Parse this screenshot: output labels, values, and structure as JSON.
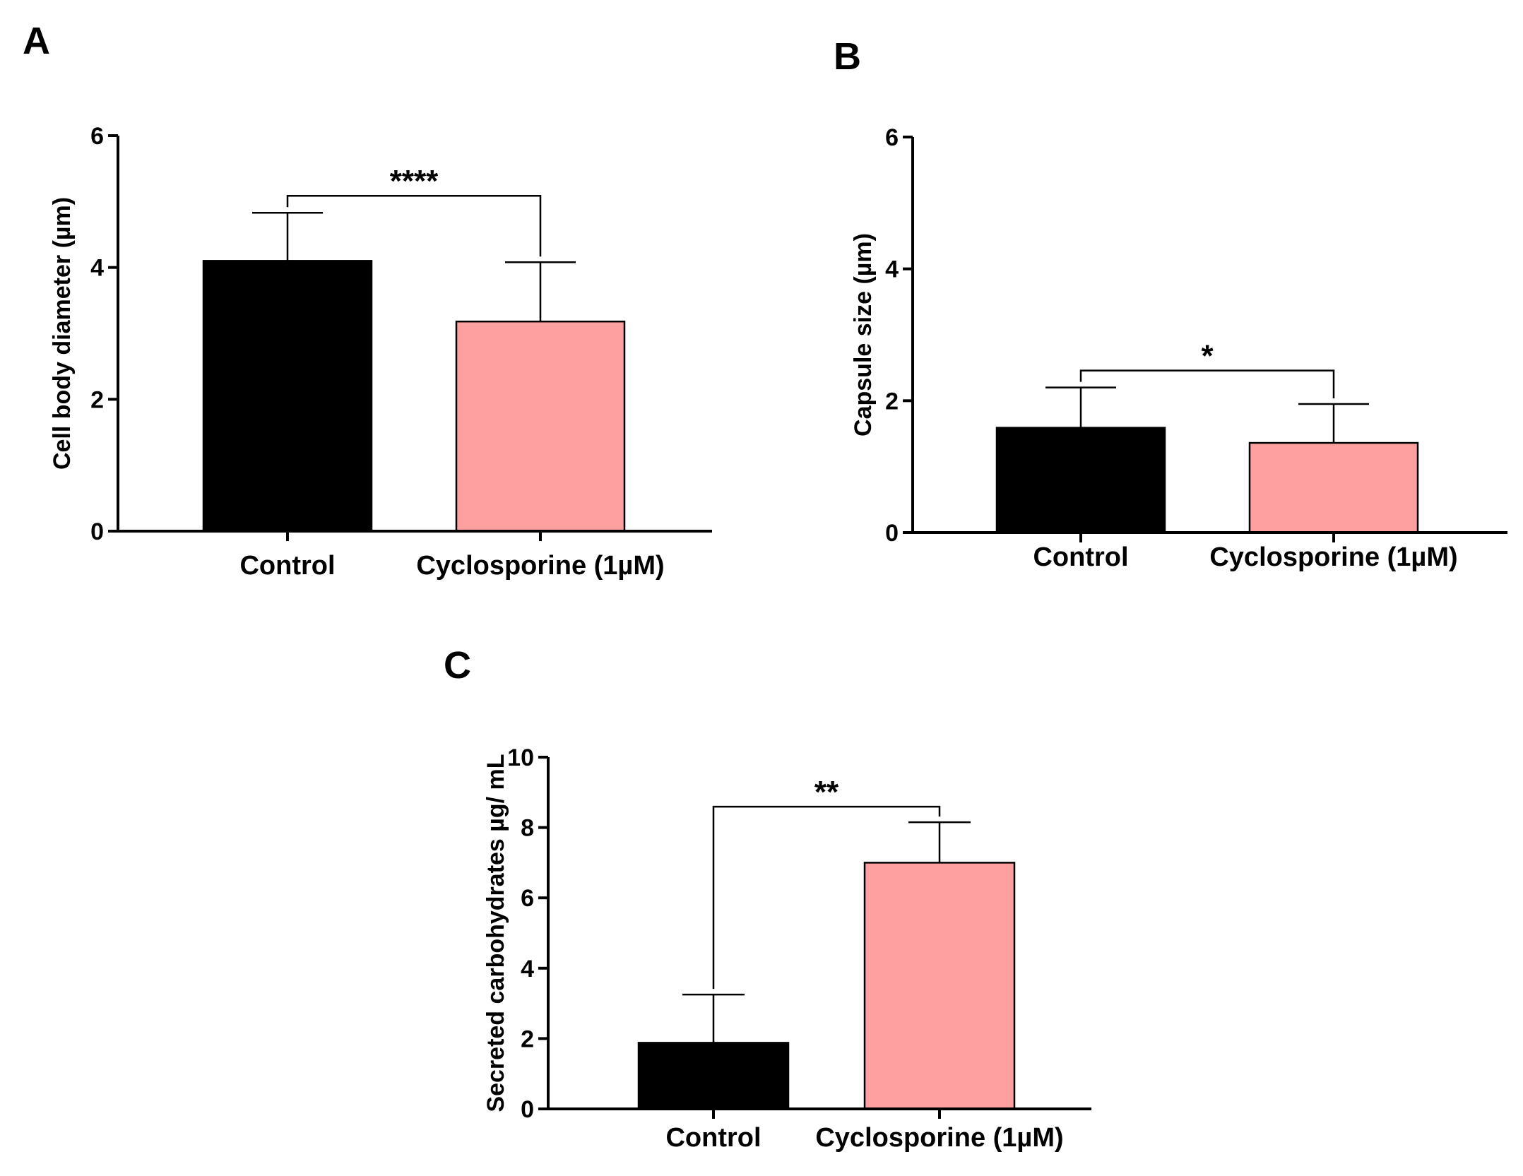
{
  "colors": {
    "control": "#000000",
    "cyclosporine": "#ffa0a0",
    "axis": "#000000"
  },
  "chart_data": [
    {
      "panel": "A",
      "type": "bar",
      "title": "",
      "xlabel": "",
      "ylabel": "Cell body diameter (µm)",
      "categories": [
        "Control",
        "Cyclosporine (1µM)"
      ],
      "values": [
        4.1,
        3.18
      ],
      "errors": [
        0.73,
        0.9
      ],
      "ylim": [
        0,
        6
      ],
      "yticks": [
        0,
        2,
        4,
        6
      ],
      "significance": {
        "label": "****",
        "between": [
          0,
          1
        ]
      },
      "grid": false
    },
    {
      "panel": "B",
      "type": "bar",
      "title": "",
      "xlabel": "",
      "ylabel": "Capsule size (µm)",
      "categories": [
        "Control",
        "Cyclosporine (1µM)"
      ],
      "values": [
        1.59,
        1.36
      ],
      "errors": [
        0.61,
        0.59
      ],
      "ylim": [
        0,
        6
      ],
      "yticks": [
        0,
        2,
        4,
        6
      ],
      "significance": {
        "label": "*",
        "between": [
          0,
          1
        ]
      },
      "grid": false
    },
    {
      "panel": "C",
      "type": "bar",
      "title": "",
      "xlabel": "",
      "ylabel": "Secreted carbohydrates µg/ mL",
      "categories": [
        "Control",
        "Cyclosporine (1µM)"
      ],
      "values": [
        1.88,
        7.0
      ],
      "errors": [
        1.37,
        1.15
      ],
      "ylim": [
        0,
        10
      ],
      "yticks": [
        0,
        2,
        4,
        6,
        8,
        10
      ],
      "significance": {
        "label": "**",
        "between": [
          0,
          1
        ]
      },
      "grid": false
    }
  ]
}
